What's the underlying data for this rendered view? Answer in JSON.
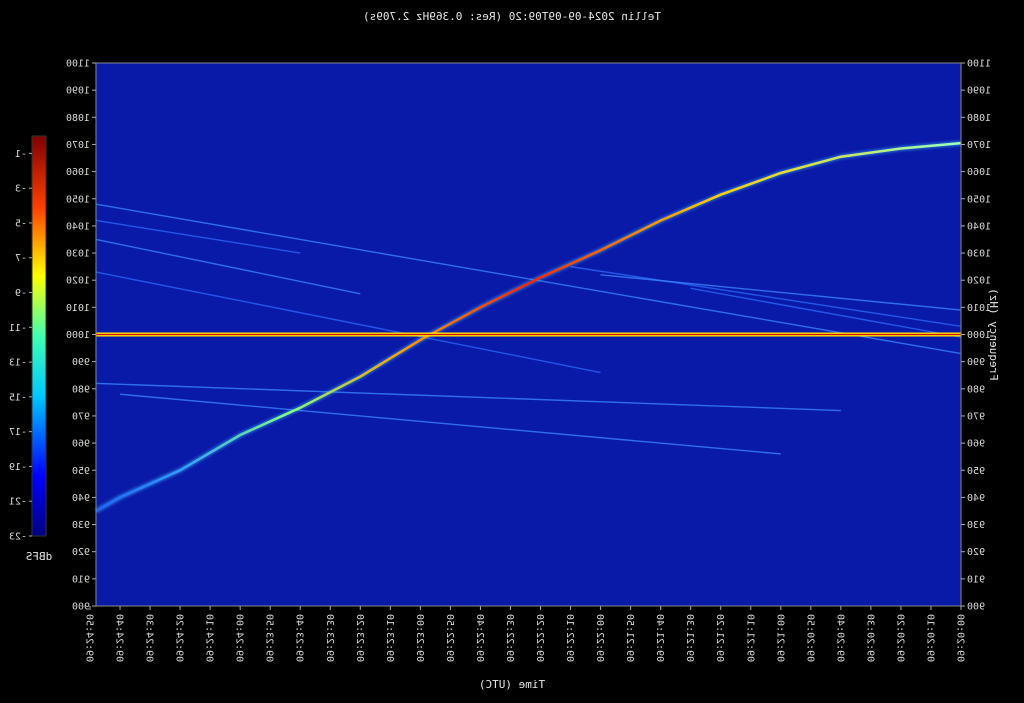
{
  "chart_data": {
    "type": "heatmap",
    "title": "Tellin 2024-09-09T09:20 (Res: 0.369Hz 2.709s)",
    "xlabel": "Time (UTC)",
    "ylabel": "Frequency (Hz)",
    "ylim": [
      900,
      1100
    ],
    "yticks": [
      900,
      910,
      920,
      930,
      940,
      950,
      960,
      970,
      980,
      990,
      1000,
      1010,
      1020,
      1030,
      1040,
      1050,
      1060,
      1070,
      1080,
      1090,
      1100
    ],
    "xticks": [
      "09:20:00",
      "09:20:10",
      "09:20:20",
      "09:20:30",
      "09:20:40",
      "09:20:50",
      "09:21:00",
      "09:21:10",
      "09:21:20",
      "09:21:30",
      "09:21:40",
      "09:21:50",
      "09:22:00",
      "09:22:10",
      "09:22:20",
      "09:22:30",
      "09:22:40",
      "09:22:50",
      "09:23:00",
      "09:23:10",
      "09:23:20",
      "09:23:30",
      "09:23:40",
      "09:23:50",
      "09:24:00",
      "09:24:10",
      "09:24:20",
      "09:24:30",
      "09:24:40",
      "09:24:50"
    ],
    "xlim_seconds": [
      0,
      288
    ],
    "colorbar": {
      "label": "dBFS",
      "range": [
        -23,
        0
      ],
      "ticks": [
        -1,
        -3,
        -5,
        -7,
        -9,
        -11,
        -13,
        -15,
        -17,
        -19,
        -21,
        -23
      ]
    },
    "background_color": "#0a1aa8",
    "mirrored_horizontally": true,
    "traces": [
      {
        "name": "",
        "note": "main doppler curve",
        "x": [
          0,
          20,
          40,
          60,
          80,
          100,
          120,
          140,
          160,
          180,
          200,
          220,
          240,
          260,
          280,
          288
        ],
        "y": [
          1070.5,
          1068.5,
          1065.5,
          1059.5,
          1051.5,
          1042,
          1031,
          1021,
          1010,
          998,
          984.5,
          973,
          963,
          950,
          940,
          935
        ]
      },
      {
        "name": "",
        "note": "constant carrier",
        "x": [
          0,
          288
        ],
        "y": [
          1000,
          1000
        ]
      }
    ]
  }
}
